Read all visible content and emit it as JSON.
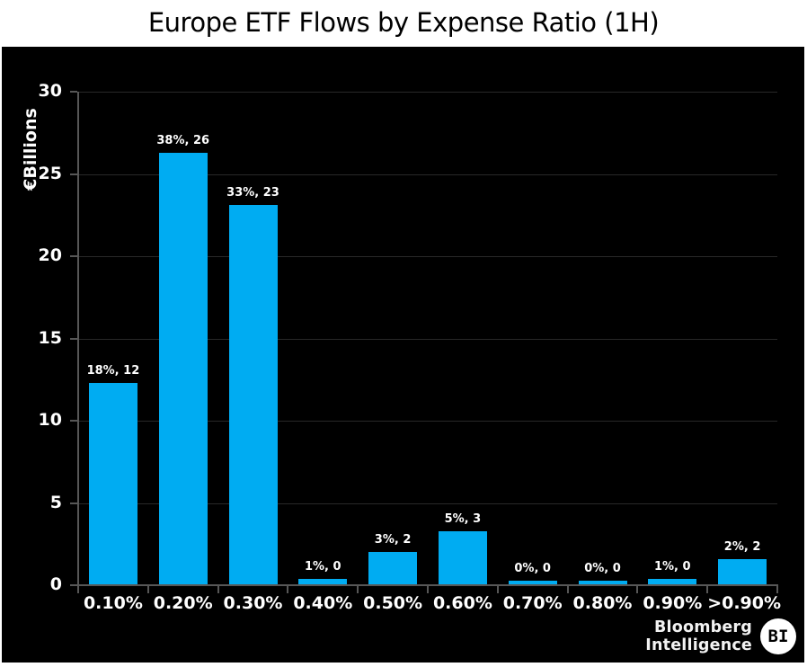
{
  "chart_data": {
    "type": "bar",
    "title": "Europe ETF Flows by Expense Ratio (1H)",
    "xlabel": "",
    "ylabel": "€Billions",
    "ylim": [
      0,
      30
    ],
    "yticks": [
      0,
      5,
      10,
      15,
      20,
      25,
      30
    ],
    "categories": [
      "0.10%",
      "0.20%",
      "0.30%",
      "0.40%",
      "0.50%",
      "0.60%",
      "0.70%",
      "0.80%",
      "0.90%",
      ">0.90%"
    ],
    "values": [
      12.3,
      26.3,
      23.1,
      0.4,
      2.0,
      3.3,
      0.3,
      0.25,
      0.4,
      1.6
    ],
    "bar_labels": [
      "18%, 12",
      "38%, 26",
      "33%, 23",
      "1%, 0",
      "3%, 2",
      "5%, 3",
      "0%, 0",
      "0%, 0",
      "1%, 0",
      "2%, 2"
    ],
    "grid": true,
    "legend": false
  },
  "colors": {
    "bar": "#00ACF2",
    "panel_bg": "#000000",
    "page_bg": "#ffffff",
    "grid": "#282828",
    "axis": "#575757",
    "label_text": "#ffffff",
    "title_text": "#000000"
  },
  "branding": {
    "line1": "Bloomberg",
    "line2": "Intelligence",
    "badge": "BI"
  }
}
